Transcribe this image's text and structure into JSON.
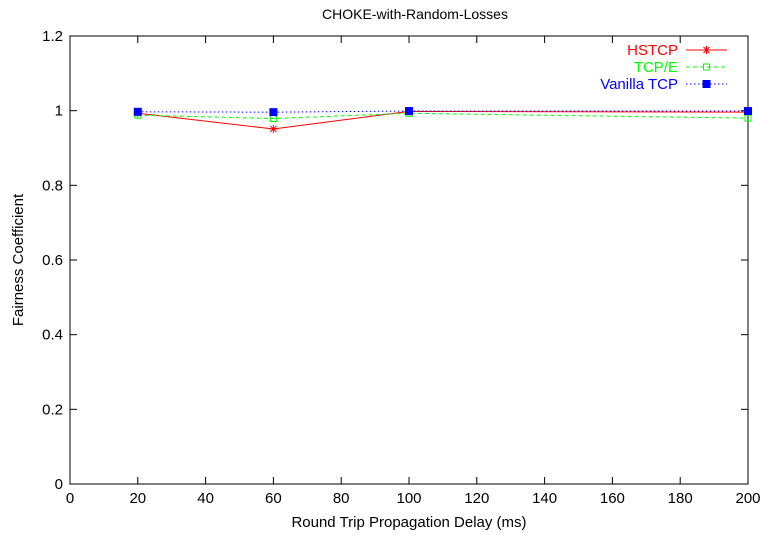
{
  "chart_data": {
    "type": "line",
    "title": "CHOKE-with-Random-Losses",
    "xlabel": "Round Trip Propagation Delay (ms)",
    "ylabel": "Fairness Coefficient",
    "xlim": [
      0,
      200
    ],
    "ylim": [
      0,
      1.2
    ],
    "xticks": [
      "0",
      "20",
      "40",
      "60",
      "80",
      "100",
      "120",
      "140",
      "160",
      "180",
      "200"
    ],
    "yticks": [
      "0",
      "0.2",
      "0.4",
      "0.6",
      "0.8",
      "1",
      "1.2"
    ],
    "grid": false,
    "legend_position": "top-right",
    "x": [
      20,
      60,
      100,
      200
    ],
    "series": [
      {
        "name": "HSTCP",
        "values": [
          0.993,
          0.951,
          0.998,
          0.996
        ],
        "color": "#ff0000",
        "marker": "star",
        "dash": "solid"
      },
      {
        "name": "TCP/E",
        "values": [
          0.988,
          0.979,
          0.993,
          0.98
        ],
        "color": "#00ff00",
        "marker": "open-square",
        "dash": "dashed"
      },
      {
        "name": "Vanilla TCP",
        "values": [
          0.997,
          0.996,
          0.999,
          0.999
        ],
        "color": "#0000ff",
        "marker": "filled-square",
        "dash": "dotted"
      }
    ]
  }
}
